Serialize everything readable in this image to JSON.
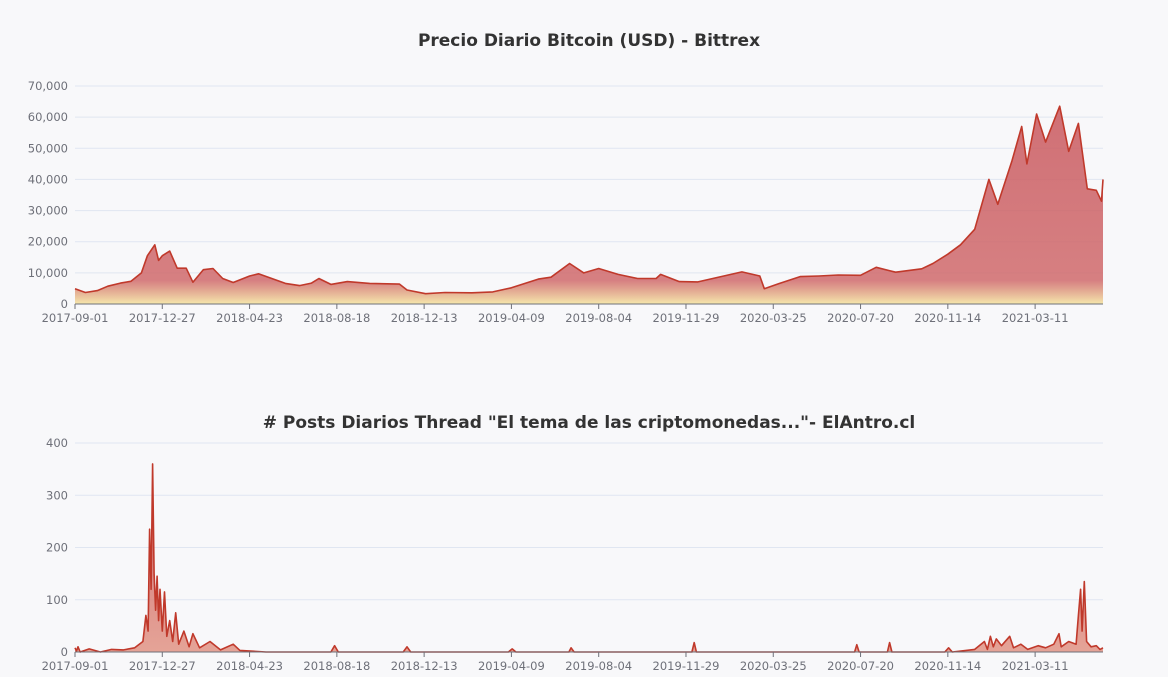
{
  "colors": {
    "line": "#c0392b",
    "area_top": "#c0474d",
    "area_bottom": "#f5e6a8",
    "grid": "#e0e6f1",
    "axis": "#6e7079",
    "text": "#333333"
  },
  "chart_data": [
    {
      "type": "area",
      "title": "Precio Diario Bitcoin (USD) - Bittrex",
      "xlabel": "",
      "ylabel": "",
      "x_start": "2017-09-01",
      "x_end": "2021-06-10",
      "xticks": [
        "2017-09-01",
        "2017-12-27",
        "2018-04-23",
        "2018-08-18",
        "2018-12-13",
        "2019-04-09",
        "2019-08-04",
        "2019-11-29",
        "2020-03-25",
        "2020-07-20",
        "2020-11-14",
        "2021-03-11"
      ],
      "ylim": [
        0,
        70000
      ],
      "yticks": [
        0,
        10000,
        20000,
        30000,
        40000,
        50000,
        60000,
        70000
      ],
      "ytick_labels": [
        "0",
        "10,000",
        "20,000",
        "30,000",
        "40,000",
        "50,000",
        "60,000",
        "70,000"
      ],
      "grid": true,
      "series": [
        {
          "points": [
            [
              "2017-09-01",
              4900
            ],
            [
              "2017-09-15",
              3700
            ],
            [
              "2017-10-01",
              4300
            ],
            [
              "2017-10-15",
              5700
            ],
            [
              "2017-11-01",
              6700
            ],
            [
              "2017-11-15",
              7300
            ],
            [
              "2017-11-29",
              10000
            ],
            [
              "2017-12-07",
              15500
            ],
            [
              "2017-12-17",
              19000
            ],
            [
              "2017-12-22",
              14000
            ],
            [
              "2017-12-27",
              15500
            ],
            [
              "2018-01-06",
              17000
            ],
            [
              "2018-01-16",
              11500
            ],
            [
              "2018-01-28",
              11500
            ],
            [
              "2018-02-06",
              7000
            ],
            [
              "2018-02-20",
              11000
            ],
            [
              "2018-03-05",
              11400
            ],
            [
              "2018-03-18",
              8200
            ],
            [
              "2018-04-01",
              6900
            ],
            [
              "2018-04-23",
              9000
            ],
            [
              "2018-05-05",
              9700
            ],
            [
              "2018-05-20",
              8400
            ],
            [
              "2018-06-10",
              6600
            ],
            [
              "2018-06-29",
              5900
            ],
            [
              "2018-07-15",
              6700
            ],
            [
              "2018-07-25",
              8200
            ],
            [
              "2018-08-10",
              6300
            ],
            [
              "2018-09-01",
              7200
            ],
            [
              "2018-10-01",
              6600
            ],
            [
              "2018-11-10",
              6400
            ],
            [
              "2018-11-20",
              4500
            ],
            [
              "2018-12-15",
              3300
            ],
            [
              "2019-01-10",
              3700
            ],
            [
              "2019-02-15",
              3600
            ],
            [
              "2019-03-15",
              3900
            ],
            [
              "2019-04-09",
              5200
            ],
            [
              "2019-05-15",
              8000
            ],
            [
              "2019-06-01",
              8600
            ],
            [
              "2019-06-26",
              13000
            ],
            [
              "2019-07-15",
              10000
            ],
            [
              "2019-08-04",
              11400
            ],
            [
              "2019-08-30",
              9500
            ],
            [
              "2019-09-25",
              8200
            ],
            [
              "2019-10-20",
              8200
            ],
            [
              "2019-10-26",
              9500
            ],
            [
              "2019-11-20",
              7200
            ],
            [
              "2019-12-15",
              7100
            ],
            [
              "2020-01-15",
              8800
            ],
            [
              "2020-02-12",
              10300
            ],
            [
              "2020-03-07",
              9000
            ],
            [
              "2020-03-13",
              4900
            ],
            [
              "2020-04-01",
              6500
            ],
            [
              "2020-04-30",
              8800
            ],
            [
              "2020-05-25",
              9000
            ],
            [
              "2020-06-20",
              9300
            ],
            [
              "2020-07-20",
              9200
            ],
            [
              "2020-08-10",
              11800
            ],
            [
              "2020-09-05",
              10200
            ],
            [
              "2020-10-10",
              11300
            ],
            [
              "2020-10-25",
              13000
            ],
            [
              "2020-11-14",
              16000
            ],
            [
              "2020-12-01",
              19000
            ],
            [
              "2020-12-20",
              24000
            ],
            [
              "2021-01-08",
              40000
            ],
            [
              "2021-01-20",
              32000
            ],
            [
              "2021-02-08",
              46000
            ],
            [
              "2021-02-21",
              57000
            ],
            [
              "2021-02-28",
              45000
            ],
            [
              "2021-03-13",
              61000
            ],
            [
              "2021-03-25",
              52000
            ],
            [
              "2021-04-13",
              63500
            ],
            [
              "2021-04-25",
              49000
            ],
            [
              "2021-05-08",
              58000
            ],
            [
              "2021-05-20",
              37000
            ],
            [
              "2021-06-01",
              36500
            ],
            [
              "2021-06-08",
              33000
            ],
            [
              "2021-06-10",
              40000
            ]
          ]
        }
      ]
    },
    {
      "type": "area",
      "title": "# Posts Diarios Thread \"El tema de las criptomonedas...\"- ElAntro.cl",
      "xlabel": "",
      "ylabel": "",
      "x_start": "2017-09-01",
      "x_end": "2021-06-10",
      "xticks": [
        "2017-09-01",
        "2017-12-27",
        "2018-04-23",
        "2018-08-18",
        "2018-12-13",
        "2019-04-09",
        "2019-08-04",
        "2019-11-29",
        "2020-03-25",
        "2020-07-20",
        "2020-11-14",
        "2021-03-11"
      ],
      "ylim": [
        0,
        400
      ],
      "yticks": [
        0,
        100,
        200,
        300,
        400
      ],
      "ytick_labels": [
        "0",
        "100",
        "200",
        "300",
        "400"
      ],
      "grid": true,
      "series": [
        {
          "points": [
            [
              "2017-09-01",
              8
            ],
            [
              "2017-09-03",
              2
            ],
            [
              "2017-09-05",
              10
            ],
            [
              "2017-09-08",
              0
            ],
            [
              "2017-09-20",
              6
            ],
            [
              "2017-10-05",
              0
            ],
            [
              "2017-10-20",
              5
            ],
            [
              "2017-11-05",
              4
            ],
            [
              "2017-11-20",
              8
            ],
            [
              "2017-12-01",
              20
            ],
            [
              "2017-12-05",
              70
            ],
            [
              "2017-12-08",
              40
            ],
            [
              "2017-12-10",
              235
            ],
            [
              "2017-12-12",
              120
            ],
            [
              "2017-12-14",
              360
            ],
            [
              "2017-12-16",
              150
            ],
            [
              "2017-12-18",
              80
            ],
            [
              "2017-12-20",
              145
            ],
            [
              "2017-12-22",
              60
            ],
            [
              "2017-12-24",
              120
            ],
            [
              "2017-12-27",
              40
            ],
            [
              "2017-12-30",
              115
            ],
            [
              "2018-01-02",
              30
            ],
            [
              "2018-01-06",
              60
            ],
            [
              "2018-01-10",
              20
            ],
            [
              "2018-01-14",
              75
            ],
            [
              "2018-01-18",
              15
            ],
            [
              "2018-01-25",
              40
            ],
            [
              "2018-02-01",
              10
            ],
            [
              "2018-02-06",
              35
            ],
            [
              "2018-02-15",
              8
            ],
            [
              "2018-03-01",
              20
            ],
            [
              "2018-03-15",
              4
            ],
            [
              "2018-04-01",
              15
            ],
            [
              "2018-04-10",
              3
            ],
            [
              "2018-05-15",
              0
            ],
            [
              "2018-08-10",
              0
            ],
            [
              "2018-08-15",
              12
            ],
            [
              "2018-08-20",
              0
            ],
            [
              "2018-11-15",
              0
            ],
            [
              "2018-11-20",
              10
            ],
            [
              "2018-11-25",
              0
            ],
            [
              "2019-04-05",
              0
            ],
            [
              "2019-04-10",
              6
            ],
            [
              "2019-04-15",
              0
            ],
            [
              "2019-06-25",
              0
            ],
            [
              "2019-06-28",
              8
            ],
            [
              "2019-07-02",
              0
            ],
            [
              "2019-12-07",
              0
            ],
            [
              "2019-12-10",
              18
            ],
            [
              "2019-12-13",
              0
            ],
            [
              "2020-07-12",
              0
            ],
            [
              "2020-07-15",
              14
            ],
            [
              "2020-07-18",
              0
            ],
            [
              "2020-08-25",
              0
            ],
            [
              "2020-08-28",
              18
            ],
            [
              "2020-08-31",
              0
            ],
            [
              "2020-11-10",
              0
            ],
            [
              "2020-11-15",
              8
            ],
            [
              "2020-11-20",
              0
            ],
            [
              "2020-12-20",
              5
            ],
            [
              "2021-01-02",
              20
            ],
            [
              "2021-01-06",
              5
            ],
            [
              "2021-01-10",
              30
            ],
            [
              "2021-01-14",
              10
            ],
            [
              "2021-01-18",
              25
            ],
            [
              "2021-01-25",
              12
            ],
            [
              "2021-02-05",
              30
            ],
            [
              "2021-02-10",
              8
            ],
            [
              "2021-02-20",
              15
            ],
            [
              "2021-03-01",
              5
            ],
            [
              "2021-03-15",
              12
            ],
            [
              "2021-03-25",
              8
            ],
            [
              "2021-04-05",
              15
            ],
            [
              "2021-04-12",
              35
            ],
            [
              "2021-04-15",
              10
            ],
            [
              "2021-04-25",
              20
            ],
            [
              "2021-05-05",
              15
            ],
            [
              "2021-05-08",
              70
            ],
            [
              "2021-05-11",
              120
            ],
            [
              "2021-05-13",
              40
            ],
            [
              "2021-05-16",
              135
            ],
            [
              "2021-05-19",
              20
            ],
            [
              "2021-05-25",
              10
            ],
            [
              "2021-06-01",
              12
            ],
            [
              "2021-06-06",
              5
            ],
            [
              "2021-06-10",
              8
            ]
          ]
        }
      ]
    }
  ]
}
